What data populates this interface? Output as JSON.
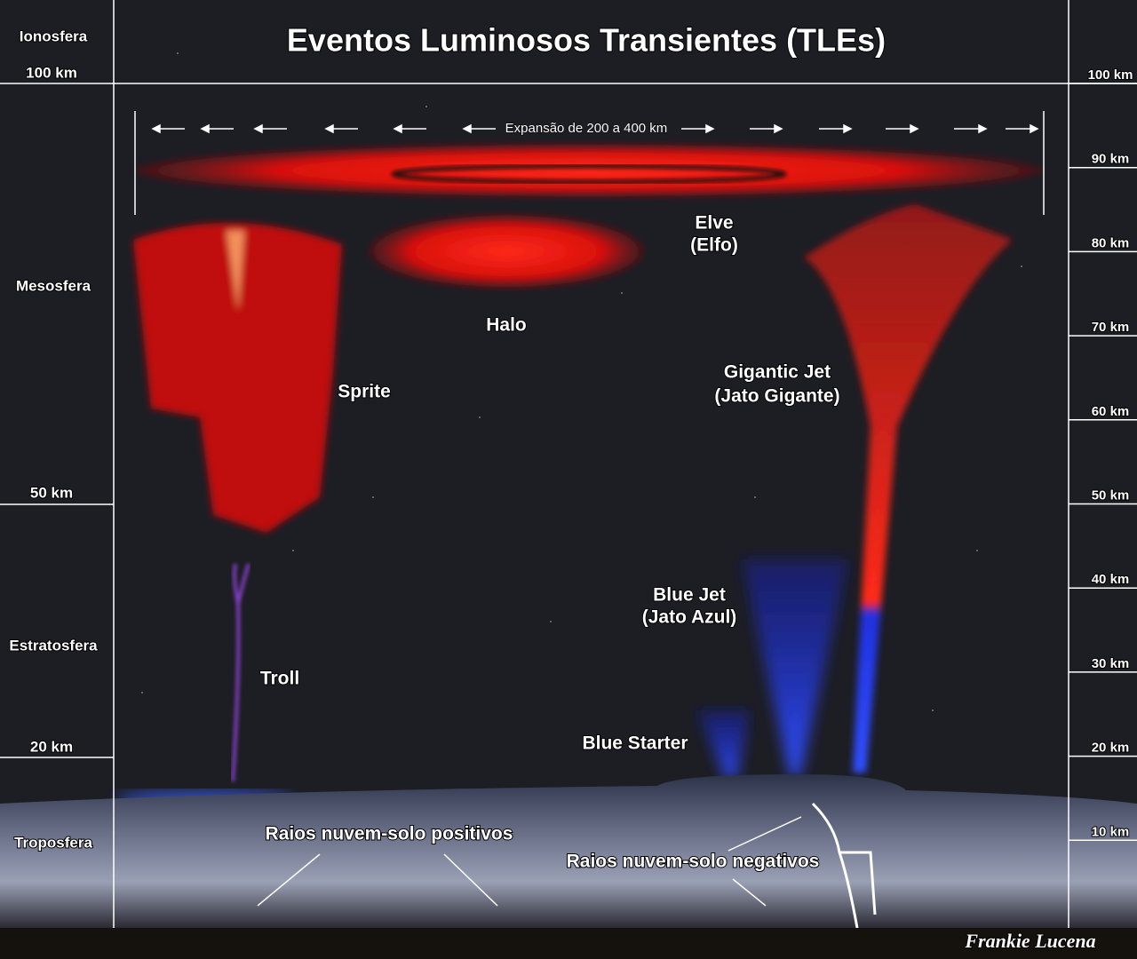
{
  "header": {
    "title": "Eventos Luminosos Transientes (TLEs)"
  },
  "layers": [
    "Ionosfera",
    "Mesosfera",
    "Estratosfera",
    "Troposfera"
  ],
  "left_boundaries": [
    "100 km",
    "50 km",
    "20 km"
  ],
  "right_scale": [
    "100 km",
    "90 km",
    "80 km",
    "70 km",
    "60 km",
    "50 km",
    "40 km",
    "30 km",
    "20 km",
    "10 km"
  ],
  "phenomena": {
    "expansion": "Expansão de 200 a 400 km",
    "elve": [
      "Elve",
      "(Elfo)"
    ],
    "halo": "Halo",
    "sprite": "Sprite",
    "gigantic_jet": [
      "Gigantic Jet",
      "(Jato Gigante)"
    ],
    "blue_jet": [
      "Blue Jet",
      "(Jato Azul)"
    ],
    "troll": "Troll",
    "blue_starter": "Blue Starter",
    "positive": "Raios nuvem-solo positivos",
    "negative": "Raios nuvem-solo negativos"
  },
  "credit": "Frankie Lucena"
}
